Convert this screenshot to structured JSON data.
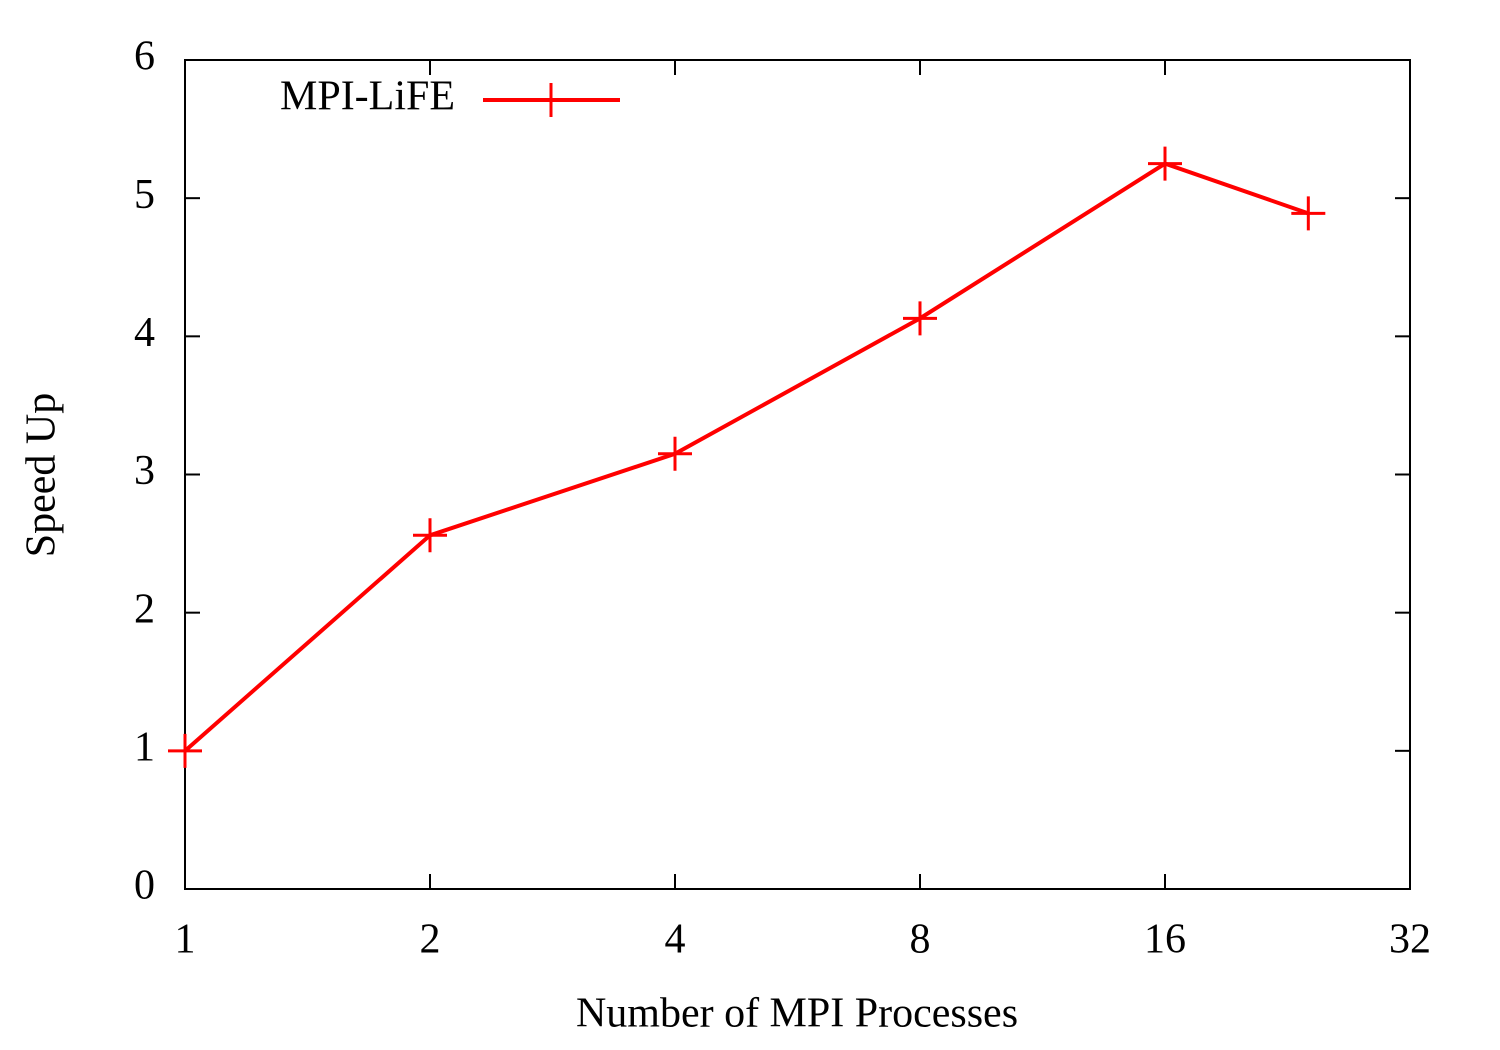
{
  "chart_data": {
    "type": "line",
    "xlabel": "Number of MPI Processes",
    "ylabel": "Speed Up",
    "x": [
      1,
      2,
      4,
      8,
      16,
      24
    ],
    "series": [
      {
        "name": "MPI-LiFE",
        "color": "#ff0000",
        "values": [
          1,
          2.56,
          3.15,
          4.13,
          5.25,
          4.89
        ]
      }
    ],
    "xscale": "log",
    "xlim": [
      1,
      32
    ],
    "xticks": [
      1,
      2,
      4,
      8,
      16,
      32
    ],
    "ylim": [
      0,
      6
    ],
    "yticks": [
      0,
      1,
      2,
      3,
      4,
      5,
      6
    ],
    "grid": false,
    "legend": "top-left"
  }
}
